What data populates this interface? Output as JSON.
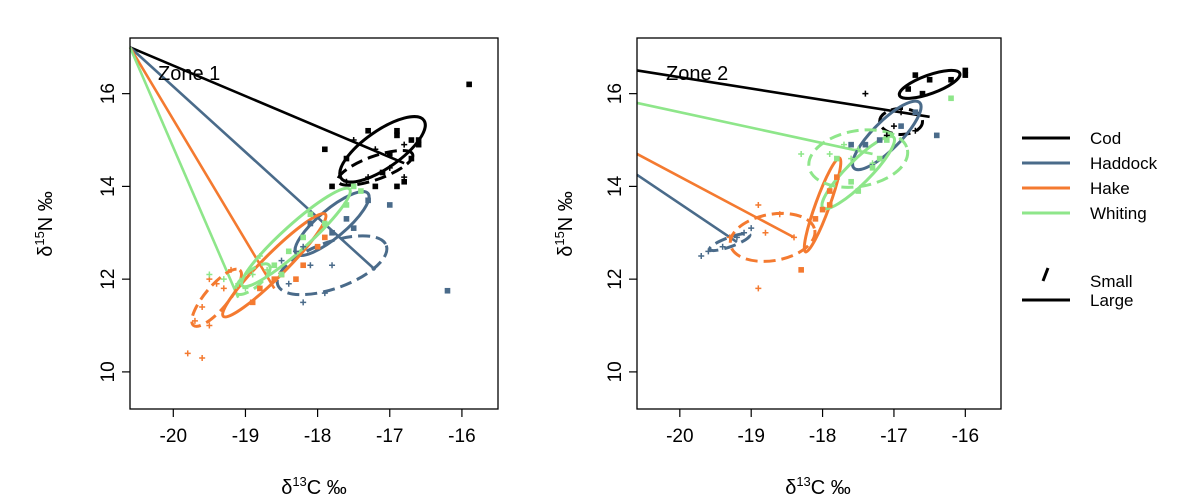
{
  "colors": {
    "cod": "#000000",
    "haddock": "#4a6b8a",
    "hake": "#f47a30",
    "whiting": "#8ee68a"
  },
  "legend": {
    "placement": "right",
    "species": [
      {
        "label": "Cod",
        "color": "#000000"
      },
      {
        "label": "Haddock",
        "color": "#4a6b8a"
      },
      {
        "label": "Hake",
        "color": "#f47a30"
      },
      {
        "label": "Whiting",
        "color": "#8ee68a"
      }
    ],
    "sizes": [
      {
        "label": "Small",
        "style": "dashed"
      },
      {
        "label": "Large",
        "style": "solid"
      }
    ]
  },
  "chart_data": [
    {
      "type": "scatter",
      "title": "Zone 1",
      "xlabel_parts": [
        "δ",
        "13",
        "C ‰"
      ],
      "ylabel_parts": [
        "δ",
        "15",
        "N ‰"
      ],
      "xlim": [
        -20.6,
        -15.5
      ],
      "ylim": [
        9.2,
        17.2
      ],
      "xticks": [
        -20,
        -19,
        -18,
        -17,
        -16
      ],
      "yticks": [
        10,
        12,
        14,
        16
      ],
      "ellipses": [
        {
          "species": "Cod",
          "size": "Large",
          "cx": -17.1,
          "cy": 14.8,
          "rx": 0.7,
          "ry": 0.4,
          "angle": 35
        },
        {
          "species": "Cod",
          "size": "Small",
          "cx": -17.2,
          "cy": 14.4,
          "rx": 0.55,
          "ry": 0.25,
          "angle": 20
        },
        {
          "species": "Haddock",
          "size": "Large",
          "cx": -17.8,
          "cy": 13.2,
          "rx": 0.65,
          "ry": 0.3,
          "angle": 40
        },
        {
          "species": "Haddock",
          "size": "Small",
          "cx": -17.8,
          "cy": 12.3,
          "rx": 0.8,
          "ry": 0.5,
          "angle": 20
        },
        {
          "species": "Hake",
          "size": "Large",
          "cx": -18.6,
          "cy": 12.3,
          "rx": 1.0,
          "ry": 0.25,
          "angle": 45
        },
        {
          "species": "Hake",
          "size": "Small",
          "cx": -19.4,
          "cy": 11.6,
          "rx": 0.5,
          "ry": 0.25,
          "angle": 50
        },
        {
          "species": "Whiting",
          "size": "Large",
          "cx": -18.3,
          "cy": 12.9,
          "rx": 1.0,
          "ry": 0.28,
          "angle": 42
        },
        {
          "species": "Whiting",
          "size": "Small",
          "cx": -18.9,
          "cy": 12.0,
          "rx": 0.3,
          "ry": 0.18,
          "angle": 40
        }
      ],
      "lines": [
        {
          "species": "Cod",
          "x": [
            -20.6,
            -16.8
          ],
          "y": [
            17.0,
            14.5
          ]
        },
        {
          "species": "Haddock",
          "x": [
            -20.6,
            -17.2
          ],
          "y": [
            17.0,
            12.2
          ]
        },
        {
          "species": "Hake",
          "x": [
            -20.6,
            -18.6
          ],
          "y": [
            17.0,
            11.8
          ]
        },
        {
          "species": "Whiting",
          "x": [
            -20.6,
            -19.1
          ],
          "y": [
            17.0,
            11.6
          ]
        }
      ],
      "points": [
        {
          "species": "Cod",
          "size": "Large",
          "xy": [
            [
              -16.9,
              15.1
            ],
            [
              -16.7,
              15.0
            ],
            [
              -16.6,
              14.9
            ],
            [
              -17.0,
              14.7
            ],
            [
              -17.3,
              15.2
            ],
            [
              -17.6,
              14.6
            ],
            [
              -17.9,
              14.8
            ],
            [
              -17.2,
              14.0
            ],
            [
              -16.9,
              14.0
            ],
            [
              -16.8,
              14.1
            ],
            [
              -17.8,
              14.0
            ],
            [
              -17.1,
              14.3
            ],
            [
              -16.9,
              15.2
            ],
            [
              -16.6,
              15.0
            ],
            [
              -15.9,
              16.2
            ],
            [
              -16.7,
              14.6
            ]
          ]
        },
        {
          "species": "Cod",
          "size": "Small",
          "xy": [
            [
              -17.5,
              15.0
            ],
            [
              -17.2,
              14.8
            ],
            [
              -17.0,
              14.4
            ],
            [
              -17.3,
              14.2
            ],
            [
              -16.8,
              14.2
            ],
            [
              -16.8,
              14.9
            ],
            [
              -17.6,
              14.1
            ]
          ]
        },
        {
          "species": "Haddock",
          "size": "Large",
          "xy": [
            [
              -17.6,
              13.3
            ],
            [
              -17.3,
              13.7
            ],
            [
              -17.0,
              13.6
            ],
            [
              -17.8,
              13.0
            ],
            [
              -18.1,
              13.2
            ],
            [
              -17.5,
              13.1
            ],
            [
              -16.2,
              11.75
            ]
          ]
        },
        {
          "species": "Haddock",
          "size": "Small",
          "xy": [
            [
              -18.1,
              12.3
            ],
            [
              -17.8,
              12.3
            ],
            [
              -18.2,
              11.5
            ],
            [
              -18.4,
              11.9
            ],
            [
              -18.5,
              12.4
            ],
            [
              -18.3,
              12.6
            ],
            [
              -17.9,
              11.7
            ],
            [
              -18.2,
              12.7
            ]
          ]
        },
        {
          "species": "Hake",
          "size": "Large",
          "xy": [
            [
              -18.8,
              11.8
            ],
            [
              -18.5,
              12.1
            ],
            [
              -18.2,
              12.3
            ],
            [
              -18.0,
              12.7
            ],
            [
              -17.9,
              12.9
            ],
            [
              -18.3,
              12.0
            ],
            [
              -18.6,
              12.0
            ],
            [
              -18.9,
              11.5
            ]
          ]
        },
        {
          "species": "Hake",
          "size": "Small",
          "xy": [
            [
              -19.5,
              12.0
            ],
            [
              -19.3,
              11.8
            ],
            [
              -19.6,
              11.4
            ],
            [
              -19.7,
              11.1
            ],
            [
              -19.8,
              10.4
            ],
            [
              -19.6,
              10.3
            ],
            [
              -19.4,
              11.9
            ],
            [
              -19.2,
              12.2
            ],
            [
              -19.5,
              11.0
            ]
          ]
        },
        {
          "species": "Whiting",
          "size": "Large",
          "xy": [
            [
              -18.6,
              12.3
            ],
            [
              -18.4,
              12.6
            ],
            [
              -18.2,
              12.9
            ],
            [
              -17.9,
              13.2
            ],
            [
              -17.6,
              13.6
            ],
            [
              -17.4,
              13.9
            ],
            [
              -18.1,
              13.4
            ],
            [
              -18.5,
              12.1
            ],
            [
              -17.5,
              14.0
            ]
          ]
        },
        {
          "species": "Whiting",
          "size": "Small",
          "xy": [
            [
              -19.3,
              12.0
            ],
            [
              -19.1,
              11.9
            ],
            [
              -18.9,
              12.1
            ],
            [
              -18.8,
              12.5
            ],
            [
              -19.0,
              11.8
            ],
            [
              -19.5,
              12.1
            ],
            [
              -18.7,
              12.2
            ]
          ]
        }
      ]
    },
    {
      "type": "scatter",
      "title": "Zone 2",
      "xlabel_parts": [
        "δ",
        "13",
        "C ‰"
      ],
      "ylabel_parts": [
        "δ",
        "15",
        "N ‰"
      ],
      "xlim": [
        -20.6,
        -15.5
      ],
      "ylim": [
        9.2,
        17.2
      ],
      "xticks": [
        -20,
        -19,
        -18,
        -17,
        -16
      ],
      "yticks": [
        10,
        12,
        14,
        16
      ],
      "ellipses": [
        {
          "species": "Cod",
          "size": "Large",
          "cx": -16.5,
          "cy": 16.2,
          "rx": 0.45,
          "ry": 0.2,
          "angle": 20
        },
        {
          "species": "Cod",
          "size": "Small",
          "cx": -16.9,
          "cy": 15.4,
          "rx": 0.3,
          "ry": 0.28,
          "angle": 0
        },
        {
          "species": "Haddock",
          "size": "Large",
          "cx": -17.1,
          "cy": 15.1,
          "rx": 0.65,
          "ry": 0.3,
          "angle": 45
        },
        {
          "species": "Haddock",
          "size": "Small",
          "cx": -19.3,
          "cy": 12.8,
          "rx": 0.3,
          "ry": 0.1,
          "angle": 20
        },
        {
          "species": "Hake",
          "size": "Large",
          "cx": -18.0,
          "cy": 13.6,
          "rx": 0.7,
          "ry": 0.15,
          "angle": 70
        },
        {
          "species": "Hake",
          "size": "Small",
          "cx": -18.7,
          "cy": 12.9,
          "rx": 0.6,
          "ry": 0.5,
          "angle": 10
        },
        {
          "species": "Whiting",
          "size": "Large",
          "cx": -17.5,
          "cy": 14.3,
          "rx": 0.7,
          "ry": 0.25,
          "angle": 45
        },
        {
          "species": "Whiting",
          "size": "Small",
          "cx": -17.5,
          "cy": 14.6,
          "rx": 0.7,
          "ry": 0.6,
          "angle": 10
        }
      ],
      "lines": [
        {
          "species": "Cod",
          "x": [
            -20.6,
            -16.5
          ],
          "y": [
            16.5,
            15.5
          ]
        },
        {
          "species": "Haddock",
          "x": [
            -20.6,
            -19.2
          ],
          "y": [
            14.25,
            12.8
          ]
        },
        {
          "species": "Hake",
          "x": [
            -20.6,
            -18.4
          ],
          "y": [
            14.7,
            12.9
          ]
        },
        {
          "species": "Whiting",
          "x": [
            -20.6,
            -17.3
          ],
          "y": [
            15.8,
            14.7
          ]
        }
      ],
      "points": [
        {
          "species": "Cod",
          "size": "Large",
          "xy": [
            [
              -16.7,
              16.4
            ],
            [
              -16.5,
              16.3
            ],
            [
              -16.2,
              16.3
            ],
            [
              -16.0,
              16.5
            ],
            [
              -16.0,
              16.4
            ],
            [
              -16.8,
              16.1
            ],
            [
              -16.6,
              16.0
            ]
          ]
        },
        {
          "species": "Cod",
          "size": "Small",
          "xy": [
            [
              -17.4,
              16.0
            ],
            [
              -16.9,
              15.6
            ],
            [
              -17.0,
              15.3
            ],
            [
              -16.7,
              15.2
            ],
            [
              -17.1,
              15.1
            ]
          ]
        },
        {
          "species": "Haddock",
          "size": "Large",
          "xy": [
            [
              -16.4,
              15.1
            ],
            [
              -16.9,
              15.3
            ],
            [
              -17.2,
              15.0
            ],
            [
              -17.4,
              14.9
            ],
            [
              -16.7,
              15.6
            ],
            [
              -17.6,
              14.9
            ]
          ]
        },
        {
          "species": "Haddock",
          "size": "Small",
          "xy": [
            [
              -19.6,
              12.6
            ],
            [
              -19.4,
              12.7
            ],
            [
              -19.2,
              12.9
            ],
            [
              -19.1,
              13.0
            ],
            [
              -19.0,
              13.1
            ],
            [
              -19.7,
              12.5
            ]
          ]
        },
        {
          "species": "Hake",
          "size": "Large",
          "xy": [
            [
              -18.0,
              13.5
            ],
            [
              -17.9,
              13.9
            ],
            [
              -18.1,
              13.3
            ],
            [
              -17.8,
              14.2
            ],
            [
              -17.9,
              13.6
            ],
            [
              -18.3,
              12.2
            ]
          ]
        },
        {
          "species": "Hake",
          "size": "Small",
          "xy": [
            [
              -18.9,
              13.6
            ],
            [
              -18.6,
              13.4
            ],
            [
              -18.8,
              13.0
            ],
            [
              -18.4,
              12.9
            ],
            [
              -19.3,
              12.9
            ],
            [
              -18.9,
              11.8
            ]
          ]
        },
        {
          "species": "Whiting",
          "size": "Large",
          "xy": [
            [
              -17.6,
              14.1
            ],
            [
              -17.3,
              14.4
            ],
            [
              -17.2,
              14.6
            ],
            [
              -17.5,
              13.9
            ],
            [
              -16.2,
              15.9
            ],
            [
              -17.8,
              14.6
            ],
            [
              -17.1,
              15.0
            ]
          ]
        },
        {
          "species": "Whiting",
          "size": "Small",
          "xy": [
            [
              -17.9,
              14.7
            ],
            [
              -17.7,
              14.9
            ],
            [
              -17.5,
              14.8
            ],
            [
              -17.3,
              14.5
            ],
            [
              -18.3,
              14.7
            ],
            [
              -17.6,
              14.6
            ]
          ]
        }
      ]
    }
  ]
}
